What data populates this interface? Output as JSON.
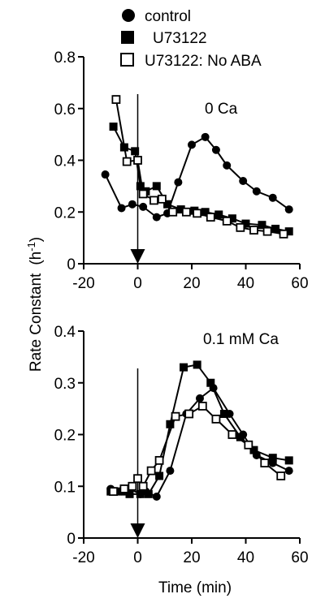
{
  "chart_data": [
    {
      "type": "line",
      "panel_label": "0  Ca",
      "xlim": [
        -20,
        60
      ],
      "ylim": [
        0,
        0.8
      ],
      "x_ticks": [
        -20,
        0,
        20,
        40,
        60
      ],
      "y_ticks": [
        0,
        0.2,
        0.4,
        0.6,
        0.8
      ],
      "x_tick_labels": [
        "-20",
        "0",
        "20",
        "40",
        "60"
      ],
      "y_tick_labels": [
        "0",
        "0.2",
        "0.4",
        "0.6",
        "0.8"
      ],
      "event_marker_x": 0,
      "series": [
        {
          "name": "control",
          "marker": "filled-circle",
          "x": [
            -12,
            -6,
            -2,
            2,
            7,
            11,
            15,
            20,
            25,
            29,
            33,
            39,
            44,
            50,
            56
          ],
          "y": [
            0.345,
            0.215,
            0.23,
            0.22,
            0.18,
            0.195,
            0.315,
            0.46,
            0.49,
            0.44,
            0.38,
            0.32,
            0.28,
            0.255,
            0.21
          ]
        },
        {
          "name": "U73122",
          "marker": "filled-square",
          "x": [
            -9,
            -5,
            -1,
            1,
            3,
            7,
            11,
            16,
            21,
            25,
            30,
            35,
            40,
            46,
            51,
            56
          ],
          "y": [
            0.53,
            0.45,
            0.435,
            0.3,
            0.28,
            0.3,
            0.23,
            0.21,
            0.205,
            0.2,
            0.19,
            0.175,
            0.155,
            0.15,
            0.135,
            0.125
          ]
        },
        {
          "name": "U73122: No ABA",
          "marker": "open-square",
          "x": [
            -8,
            -4,
            0,
            2,
            6,
            9,
            13,
            18,
            22,
            27,
            33,
            38,
            43,
            48,
            54
          ],
          "y": [
            0.635,
            0.395,
            0.4,
            0.27,
            0.245,
            0.25,
            0.2,
            0.2,
            0.195,
            0.18,
            0.165,
            0.14,
            0.13,
            0.125,
            0.115
          ]
        }
      ]
    },
    {
      "type": "line",
      "panel_label": "0.1 mM Ca",
      "xlim": [
        -20,
        60
      ],
      "ylim": [
        0,
        0.4
      ],
      "x_ticks": [
        -20,
        0,
        20,
        40,
        60
      ],
      "y_ticks": [
        0,
        0.1,
        0.2,
        0.3,
        0.4
      ],
      "x_tick_labels": [
        "-20",
        "0",
        "20",
        "40",
        "60"
      ],
      "y_tick_labels": [
        "0",
        "0.1",
        "0.2",
        "0.3",
        "0.4"
      ],
      "event_marker_x": 0,
      "series": [
        {
          "name": "control",
          "marker": "filled-circle",
          "x": [
            -10,
            -6,
            -3,
            1,
            3,
            7,
            12,
            18,
            23,
            28,
            34,
            39,
            44,
            50,
            56
          ],
          "y": [
            0.095,
            0.09,
            0.095,
            0.085,
            0.09,
            0.08,
            0.13,
            0.24,
            0.27,
            0.29,
            0.24,
            0.2,
            0.16,
            0.145,
            0.13
          ]
        },
        {
          "name": "U73122",
          "marker": "filled-square",
          "x": [
            -10,
            -6,
            -3,
            1,
            4,
            8,
            12,
            17,
            22,
            27,
            32,
            38,
            43,
            50,
            56
          ],
          "y": [
            0.09,
            0.09,
            0.085,
            0.085,
            0.085,
            0.12,
            0.22,
            0.33,
            0.335,
            0.3,
            0.24,
            0.195,
            0.17,
            0.155,
            0.15
          ]
        },
        {
          "name": "U73122: No ABA",
          "marker": "open-square",
          "x": [
            -9,
            -5,
            -2,
            0,
            2,
            5,
            8,
            14,
            19,
            24,
            29,
            35,
            41,
            47,
            53
          ],
          "y": [
            0.09,
            0.095,
            0.1,
            0.115,
            0.1,
            0.13,
            0.15,
            0.235,
            0.24,
            0.255,
            0.23,
            0.2,
            0.18,
            0.145,
            0.12
          ]
        }
      ]
    }
  ],
  "legend": {
    "placement": "top-left",
    "entries": [
      {
        "label": "control",
        "marker": "filled-circle"
      },
      {
        "label": "U73122",
        "marker": "filled-square"
      },
      {
        "label": "U73122: No ABA",
        "marker": "open-square"
      }
    ]
  },
  "axes": {
    "ylabel_main": "Rate Constant",
    "ylabel_unit_base": "(h",
    "ylabel_unit_exp": "-1",
    "ylabel_unit_close": ")",
    "xlabel": "Time  (min)"
  }
}
